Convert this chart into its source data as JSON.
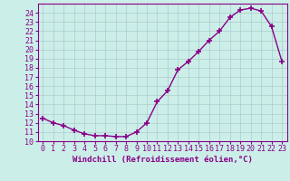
{
  "x": [
    0,
    1,
    2,
    3,
    4,
    5,
    6,
    7,
    8,
    9,
    10,
    11,
    12,
    13,
    14,
    15,
    16,
    17,
    18,
    19,
    20,
    21,
    22,
    23
  ],
  "y": [
    12.5,
    12.0,
    11.7,
    11.2,
    10.8,
    10.6,
    10.6,
    10.5,
    10.5,
    11.0,
    12.0,
    14.3,
    15.5,
    17.8,
    18.7,
    19.8,
    21.0,
    22.0,
    23.5,
    24.3,
    24.5,
    24.2,
    22.5,
    18.7
  ],
  "line_color": "#880088",
  "marker": "+",
  "markersize": 4,
  "markeredgewidth": 1.2,
  "linewidth": 1.0,
  "bg_color": "#cceee8",
  "grid_color": "#aacccc",
  "xlabel": "Windchill (Refroidissement éolien,°C)",
  "xlabel_fontsize": 6.5,
  "tick_fontsize": 6,
  "xlim": [
    -0.5,
    23.5
  ],
  "ylim": [
    10,
    25
  ],
  "yticks": [
    10,
    11,
    12,
    13,
    14,
    15,
    16,
    17,
    18,
    19,
    20,
    21,
    22,
    23,
    24
  ],
  "xticks": [
    0,
    1,
    2,
    3,
    4,
    5,
    6,
    7,
    8,
    9,
    10,
    11,
    12,
    13,
    14,
    15,
    16,
    17,
    18,
    19,
    20,
    21,
    22,
    23
  ],
  "xtick_labels": [
    "0",
    "1",
    "2",
    "3",
    "4",
    "5",
    "6",
    "7",
    "8",
    "9",
    "10",
    "11",
    "12",
    "13",
    "14",
    "15",
    "16",
    "17",
    "18",
    "19",
    "20",
    "21",
    "22",
    "23"
  ]
}
